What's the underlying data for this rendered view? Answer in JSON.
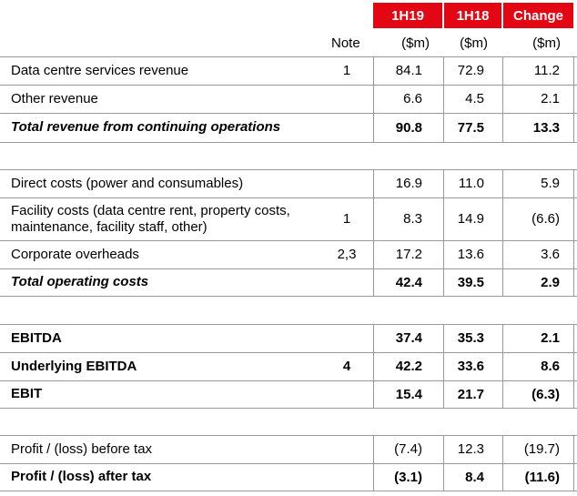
{
  "header": {
    "columns": [
      "1H19",
      "1H18",
      "Change"
    ],
    "note_label": "Note",
    "units": [
      "($m)",
      "($m)",
      "($m)"
    ]
  },
  "rows": [
    {
      "label": "Data centre services revenue",
      "note": "1",
      "h19": "84.1",
      "h18": "72.9",
      "change": "11.2"
    },
    {
      "label": "Other revenue",
      "note": "",
      "h19": "6.6",
      "h18": "4.5",
      "change": "2.1"
    },
    {
      "label": "Total revenue from continuing operations",
      "note": "",
      "h19": "90.8",
      "h18": "77.5",
      "change": "13.3"
    },
    {
      "label": "Direct costs (power and consumables)",
      "note": "",
      "h19": "16.9",
      "h18": "11.0",
      "change": "5.9"
    },
    {
      "label": "Facility costs (data centre rent, property costs,",
      "label2": "maintenance, facility staff, other)",
      "note": "1",
      "h19": "8.3",
      "h18": "14.9",
      "change": "(6.6)"
    },
    {
      "label": "Corporate overheads",
      "note": "2,3",
      "h19": "17.2",
      "h18": "13.6",
      "change": "3.6"
    },
    {
      "label": "Total operating costs",
      "note": "",
      "h19": "42.4",
      "h18": "39.5",
      "change": "2.9"
    },
    {
      "label": "EBITDA",
      "note": "",
      "h19": "37.4",
      "h18": "35.3",
      "change": "2.1"
    },
    {
      "label": "Underlying EBITDA",
      "note": "4",
      "h19": "42.2",
      "h18": "33.6",
      "change": "8.6"
    },
    {
      "label": "EBIT",
      "note": "",
      "h19": "15.4",
      "h18": "21.7",
      "change": "(6.3)"
    },
    {
      "label": "Profit / (loss) before tax",
      "note": "",
      "h19": "(7.4)",
      "h18": "12.3",
      "change": "(19.7)"
    },
    {
      "label": "Profit / (loss) after tax",
      "note": "",
      "h19": "(3.1)",
      "h18": "8.4",
      "change": "(11.6)"
    }
  ],
  "colors": {
    "header_bg": "#e30613",
    "header_text": "#ffffff",
    "rule": "#9a9a9a"
  }
}
